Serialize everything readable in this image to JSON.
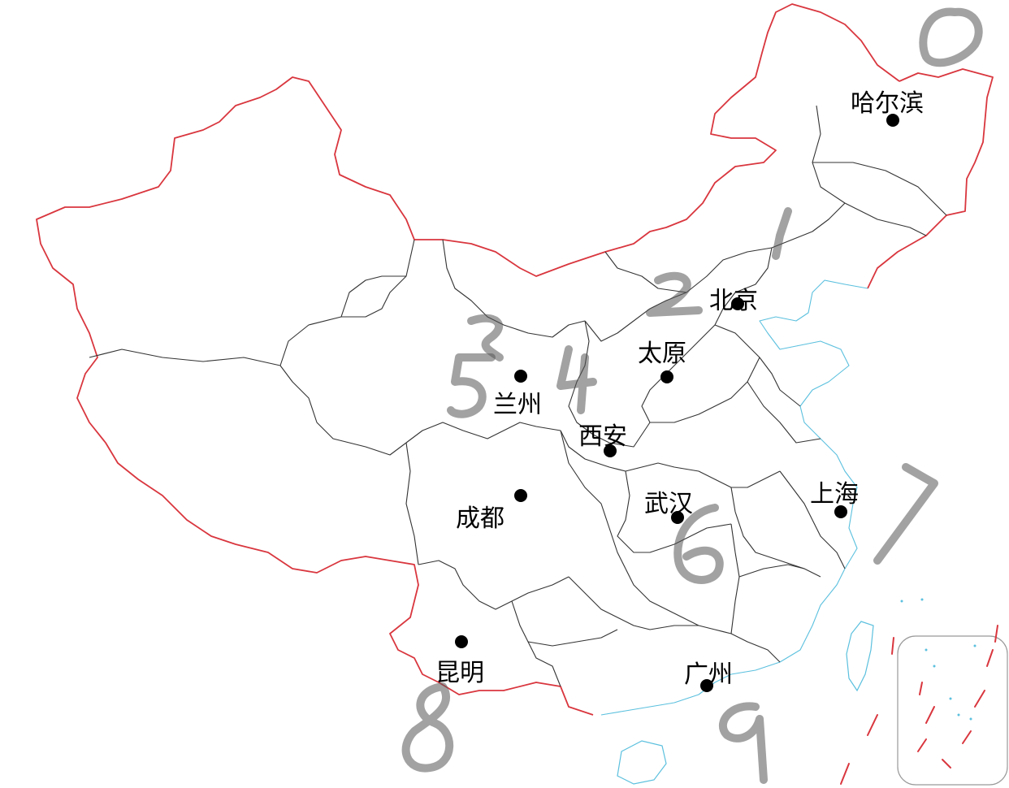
{
  "colors": {
    "national_border": "#d9363e",
    "province_border": "#333333",
    "coastline": "#5bc0de",
    "handwriting": "#555555",
    "dot": "#000000"
  },
  "cities": [
    {
      "id": "harbin",
      "label": "哈尔滨"
    },
    {
      "id": "beijing",
      "label": "北京"
    },
    {
      "id": "taiyuan",
      "label": "太原"
    },
    {
      "id": "lanzhou",
      "label": "兰州"
    },
    {
      "id": "xian",
      "label": "西安"
    },
    {
      "id": "chengdu",
      "label": "成都"
    },
    {
      "id": "wuhan",
      "label": "武汉"
    },
    {
      "id": "shanghai",
      "label": "上海"
    },
    {
      "id": "kunming",
      "label": "昆明"
    },
    {
      "id": "guangzhou",
      "label": "广州"
    }
  ],
  "handwritten_digits": [
    "0",
    "1",
    "2",
    "3",
    "4",
    "5",
    "6",
    "7",
    "8",
    "9"
  ]
}
